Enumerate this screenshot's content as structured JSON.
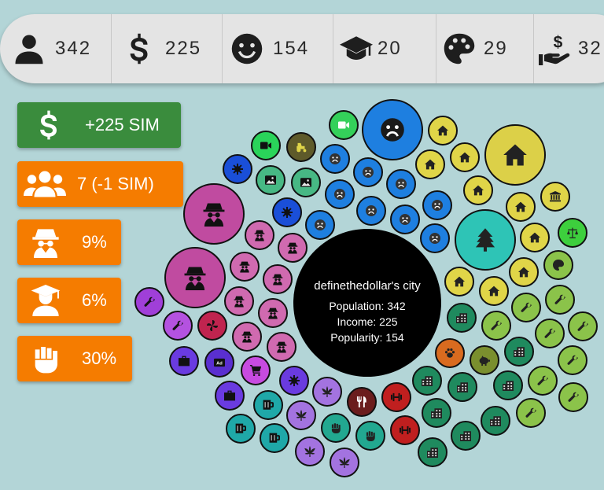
{
  "stats": [
    {
      "icon": "person-icon",
      "value": "342",
      "color": "#1e1e1e"
    },
    {
      "icon": "dollar-icon",
      "value": "225",
      "color": "#1e1e1e"
    },
    {
      "icon": "smile-icon",
      "value": "154",
      "color": "#1e1e1e"
    },
    {
      "icon": "graduation-cap-icon",
      "value": "20",
      "color": "#1e1e1e"
    },
    {
      "icon": "palette-icon",
      "value": "29",
      "color": "#1e1e1e"
    },
    {
      "icon": "hand-dollar-icon",
      "value": "32",
      "color": "#1e1e1e"
    }
  ],
  "buttons": [
    {
      "icon": "dollar-icon",
      "label": "+225 SIM",
      "color": "#3a8c3d"
    },
    {
      "icon": "group-icon",
      "label": "7 (-1 SIM)",
      "color": "#f57c00"
    },
    {
      "icon": "spy-icon",
      "label": "9%",
      "color": "#f57c00"
    },
    {
      "icon": "graduate-icon",
      "label": "6%",
      "color": "#f57c00"
    },
    {
      "icon": "fist-icon",
      "label": "30%",
      "color": "#f57c00"
    }
  ],
  "city": {
    "name": "definethedollar's city",
    "population_label": "Population: 342",
    "income_label": "Income: 225",
    "popularity_label": "Popularity: 154"
  },
  "tiles": [
    {
      "kind": "sad",
      "color": "#1e7fe0"
    },
    {
      "kind": "house",
      "color": "#e0d548"
    },
    {
      "kind": "house-large",
      "color": "#dcd048"
    },
    {
      "kind": "video",
      "color": "#34d05a"
    },
    {
      "kind": "video",
      "color": "#2ad45a"
    },
    {
      "kind": "tractor",
      "color": "#5e5a2a"
    },
    {
      "kind": "sad",
      "color": "#1e7fe0"
    },
    {
      "kind": "house",
      "color": "#e0d548"
    },
    {
      "kind": "house",
      "color": "#e0d548"
    },
    {
      "kind": "tree",
      "color": "#2ec4b6"
    },
    {
      "kind": "bank",
      "color": "#e0d548"
    },
    {
      "kind": "scale",
      "color": "#3dcf3d"
    },
    {
      "kind": "spy-large",
      "color": "#c04ba0"
    },
    {
      "kind": "spy",
      "color": "#d06ab0"
    },
    {
      "kind": "gear",
      "color": "#1a4fd8"
    },
    {
      "kind": "image",
      "color": "#47b884"
    },
    {
      "kind": "palette",
      "color": "#8bc34a"
    },
    {
      "kind": "wrench",
      "color": "#9ccc30"
    },
    {
      "kind": "paw",
      "color": "#d96b1f"
    },
    {
      "kind": "piggy",
      "color": "#7a8f2e"
    },
    {
      "kind": "building",
      "color": "#1f8a5e"
    },
    {
      "kind": "barbell",
      "color": "#c01f1f"
    },
    {
      "kind": "utensils",
      "color": "#6b1d1d"
    },
    {
      "kind": "leaf",
      "color": "#a373e0"
    },
    {
      "kind": "fist",
      "color": "#22a890"
    },
    {
      "kind": "cart",
      "color": "#c74be0"
    },
    {
      "kind": "briefcase",
      "color": "#6a3be0"
    },
    {
      "kind": "mug",
      "color": "#1fa8a8"
    },
    {
      "kind": "pinwheel",
      "color": "#c0244f"
    },
    {
      "kind": "ad",
      "color": "#5a2fd0"
    }
  ]
}
